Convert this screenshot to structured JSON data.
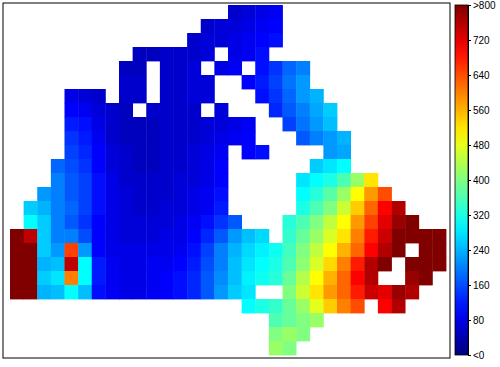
{
  "chart_data": {
    "type": "heatmap",
    "color": "jet",
    "tick_labels": false,
    "colorbar": {
      "lim": [
        0,
        800
      ],
      "ticks": [
        {
          "value": 0,
          "label": "<0"
        },
        80,
        160,
        240,
        320,
        400,
        480,
        560,
        640,
        720,
        {
          "value": 800,
          "label": ">800"
        }
      ]
    },
    "cells": [
      [
        null,
        null,
        null,
        null,
        null,
        null,
        null,
        null,
        null,
        null,
        null,
        null,
        null,
        null,
        null,
        null,
        60,
        70,
        80,
        90,
        null,
        null,
        null,
        null,
        null,
        null,
        null,
        null,
        null,
        null,
        null,
        null
      ],
      [
        null,
        null,
        null,
        null,
        null,
        null,
        null,
        null,
        null,
        null,
        null,
        null,
        null,
        null,
        60,
        70,
        70,
        80,
        90,
        100,
        null,
        null,
        null,
        null,
        null,
        null,
        null,
        null,
        null,
        null,
        null,
        null
      ],
      [
        null,
        null,
        null,
        null,
        null,
        null,
        null,
        null,
        null,
        null,
        null,
        null,
        null,
        60,
        70,
        70,
        80,
        90,
        100,
        110,
        null,
        null,
        null,
        null,
        null,
        null,
        null,
        null,
        null,
        null,
        null,
        null
      ],
      [
        null,
        null,
        null,
        null,
        null,
        null,
        null,
        null,
        null,
        50,
        50,
        60,
        60,
        60,
        70,
        null,
        80,
        90,
        110,
        null,
        null,
        null,
        null,
        null,
        null,
        null,
        null,
        null,
        null,
        null,
        null,
        null
      ],
      [
        null,
        null,
        null,
        null,
        null,
        null,
        null,
        null,
        50,
        50,
        null,
        60,
        60,
        70,
        null,
        80,
        90,
        null,
        110,
        140,
        180,
        200,
        null,
        null,
        null,
        null,
        null,
        null,
        null,
        null,
        null,
        null
      ],
      [
        null,
        null,
        null,
        null,
        null,
        null,
        null,
        null,
        60,
        60,
        null,
        60,
        60,
        70,
        70,
        null,
        null,
        100,
        120,
        150,
        190,
        220,
        null,
        null,
        null,
        null,
        null,
        null,
        null,
        null,
        null,
        null
      ],
      [
        null,
        null,
        null,
        null,
        80,
        70,
        60,
        null,
        60,
        60,
        null,
        60,
        60,
        70,
        70,
        null,
        null,
        null,
        110,
        140,
        180,
        220,
        240,
        null,
        null,
        null,
        null,
        null,
        null,
        null,
        null,
        null
      ],
      [
        null,
        null,
        null,
        null,
        100,
        90,
        70,
        60,
        50,
        null,
        60,
        60,
        60,
        60,
        null,
        70,
        null,
        null,
        null,
        130,
        170,
        200,
        230,
        260,
        null,
        null,
        null,
        null,
        null,
        null,
        null,
        null
      ],
      [
        null,
        null,
        null,
        null,
        120,
        110,
        80,
        60,
        50,
        50,
        50,
        60,
        60,
        60,
        70,
        70,
        80,
        90,
        null,
        null,
        150,
        190,
        220,
        250,
        null,
        null,
        null,
        null,
        null,
        null,
        null,
        null
      ],
      [
        null,
        null,
        null,
        null,
        140,
        120,
        90,
        60,
        50,
        50,
        50,
        60,
        60,
        60,
        70,
        80,
        90,
        100,
        null,
        null,
        null,
        170,
        200,
        220,
        240,
        null,
        null,
        null,
        null,
        null,
        null,
        null
      ],
      [
        null,
        null,
        null,
        null,
        150,
        130,
        100,
        70,
        60,
        50,
        50,
        60,
        60,
        70,
        80,
        90,
        null,
        100,
        110,
        null,
        null,
        null,
        null,
        220,
        230,
        null,
        null,
        null,
        null,
        null,
        null,
        null
      ],
      [
        null,
        null,
        null,
        180,
        160,
        140,
        100,
        70,
        60,
        50,
        50,
        60,
        60,
        70,
        80,
        100,
        null,
        null,
        null,
        null,
        null,
        null,
        260,
        280,
        300,
        null,
        null,
        null,
        null,
        null,
        null,
        null
      ],
      [
        null,
        null,
        null,
        200,
        170,
        150,
        110,
        80,
        60,
        60,
        60,
        60,
        70,
        70,
        80,
        100,
        null,
        null,
        null,
        null,
        null,
        280,
        300,
        320,
        360,
        420,
        520,
        null,
        null,
        null,
        null,
        null
      ],
      [
        null,
        null,
        220,
        200,
        170,
        150,
        110,
        80,
        70,
        60,
        60,
        60,
        70,
        80,
        90,
        110,
        null,
        null,
        null,
        null,
        null,
        300,
        330,
        370,
        420,
        500,
        580,
        640,
        null,
        null,
        null,
        null
      ],
      [
        null,
        260,
        240,
        200,
        180,
        150,
        110,
        80,
        70,
        60,
        60,
        70,
        70,
        80,
        90,
        120,
        null,
        null,
        null,
        null,
        null,
        320,
        360,
        400,
        460,
        540,
        620,
        700,
        760,
        null,
        null,
        null
      ],
      [
        null,
        300,
        260,
        200,
        170,
        140,
        100,
        80,
        70,
        70,
        70,
        70,
        80,
        90,
        110,
        140,
        170,
        null,
        null,
        null,
        330,
        360,
        400,
        450,
        500,
        580,
        650,
        720,
        780,
        820,
        null,
        null
      ],
      [
        800,
        750,
        260,
        200,
        200,
        160,
        100,
        80,
        70,
        70,
        70,
        80,
        80,
        100,
        130,
        170,
        220,
        250,
        270,
        null,
        340,
        380,
        420,
        470,
        520,
        600,
        680,
        740,
        800,
        850,
        800,
        820
      ],
      [
        850,
        850,
        260,
        220,
        650,
        220,
        100,
        80,
        80,
        80,
        80,
        80,
        90,
        110,
        150,
        200,
        240,
        270,
        290,
        310,
        350,
        400,
        450,
        500,
        560,
        620,
        700,
        760,
        820,
        null,
        880,
        900
      ],
      [
        900,
        880,
        240,
        250,
        750,
        300,
        120,
        90,
        80,
        80,
        90,
        90,
        100,
        120,
        160,
        200,
        250,
        280,
        300,
        320,
        360,
        410,
        470,
        530,
        600,
        680,
        760,
        820,
        null,
        850,
        880,
        860
      ],
      [
        900,
        850,
        260,
        280,
        600,
        300,
        120,
        90,
        80,
        80,
        90,
        100,
        110,
        130,
        170,
        210,
        250,
        290,
        310,
        330,
        380,
        440,
        500,
        560,
        620,
        700,
        760,
        null,
        null,
        780,
        800,
        null
      ],
      [
        880,
        800,
        240,
        250,
        300,
        250,
        110,
        90,
        80,
        80,
        90,
        100,
        110,
        130,
        170,
        220,
        260,
        280,
        null,
        null,
        400,
        460,
        520,
        580,
        620,
        680,
        740,
        720,
        780,
        760,
        null,
        null
      ],
      [
        null,
        null,
        null,
        null,
        null,
        null,
        null,
        null,
        null,
        null,
        null,
        null,
        null,
        null,
        null,
        null,
        null,
        300,
        320,
        340,
        380,
        420,
        480,
        540,
        600,
        640,
        null,
        700,
        760,
        null,
        null,
        null
      ],
      [
        null,
        null,
        null,
        null,
        null,
        null,
        null,
        null,
        null,
        null,
        null,
        null,
        null,
        null,
        null,
        null,
        null,
        null,
        null,
        360,
        380,
        400,
        420,
        null,
        null,
        null,
        null,
        null,
        null,
        null,
        null,
        null
      ],
      [
        null,
        null,
        null,
        null,
        null,
        null,
        null,
        null,
        null,
        null,
        null,
        null,
        null,
        null,
        null,
        null,
        null,
        null,
        null,
        400,
        420,
        400,
        null,
        null,
        null,
        null,
        null,
        null,
        null,
        null,
        null,
        null
      ],
      [
        null,
        null,
        null,
        null,
        null,
        null,
        null,
        null,
        null,
        null,
        null,
        null,
        null,
        null,
        null,
        null,
        null,
        null,
        null,
        420,
        400,
        null,
        null,
        null,
        null,
        null,
        null,
        null,
        null,
        null,
        null,
        null
      ]
    ]
  }
}
